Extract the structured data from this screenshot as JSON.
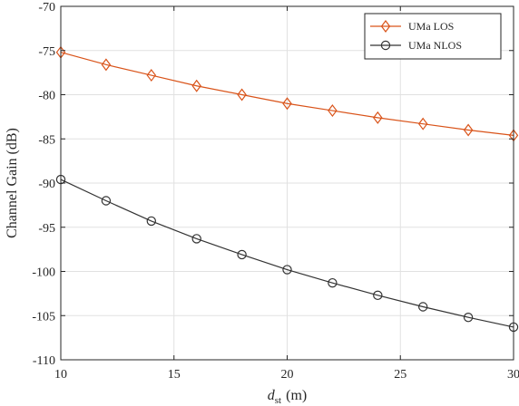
{
  "chart_data": {
    "type": "line",
    "xlabel": "d",
    "xlabel_subscript": "st",
    "xlabel_unit": "(m)",
    "ylabel": "Channel Gain (dB)",
    "xlim": [
      10,
      30
    ],
    "ylim": [
      -110,
      -70
    ],
    "x_ticks": [
      10,
      15,
      20,
      25,
      30
    ],
    "y_ticks": [
      -110,
      -105,
      -100,
      -95,
      -90,
      -85,
      -80,
      -75,
      -70
    ],
    "grid": true,
    "legend_position": "top-right",
    "x": [
      10,
      12,
      14,
      16,
      18,
      20,
      22,
      24,
      26,
      28,
      30
    ],
    "series": [
      {
        "name": "UMa LOS",
        "color": "#d95319",
        "marker": "diamond",
        "values": [
          -75.2,
          -76.6,
          -77.8,
          -79.0,
          -80.0,
          -81.0,
          -81.8,
          -82.6,
          -83.3,
          -84.0,
          -84.6
        ]
      },
      {
        "name": "UMa NLOS",
        "color": "#333333",
        "marker": "circle",
        "values": [
          -89.6,
          -92.0,
          -94.3,
          -96.3,
          -98.1,
          -99.8,
          -101.3,
          -102.7,
          -104.0,
          -105.2,
          -106.3
        ]
      }
    ]
  }
}
